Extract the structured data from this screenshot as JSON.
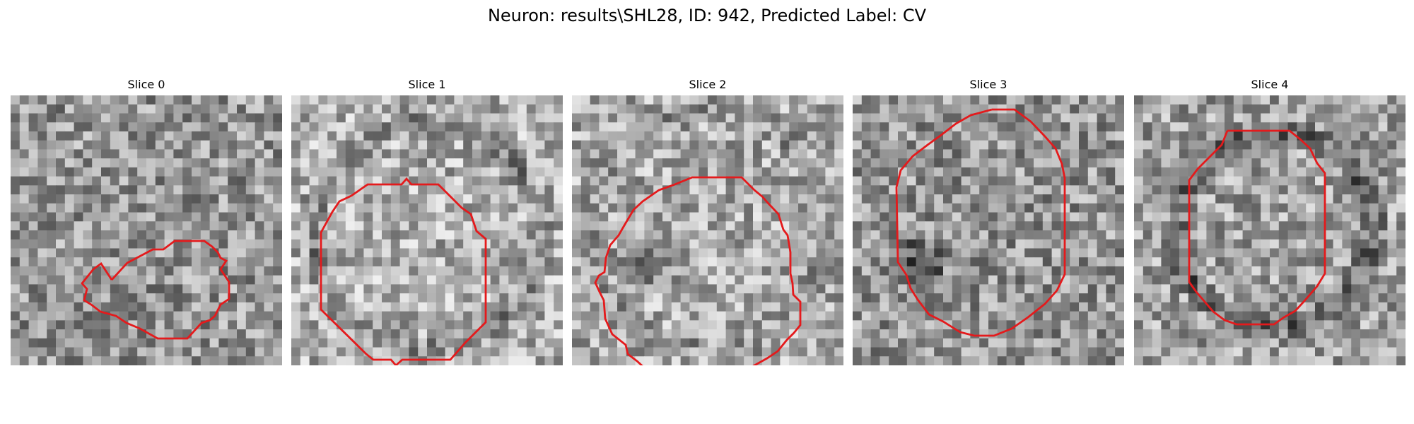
{
  "figure": {
    "title": "Neuron: results\\SHL28, ID: 942, Predicted Label: CV",
    "contour_color": "#e41a1c",
    "colormap": "grayscale",
    "grid": "none",
    "axes": "hidden"
  },
  "panels": [
    {
      "title": "Slice 0",
      "image_name": "em-slice-0",
      "contour": "small irregular outline of the neuron cross-section"
    },
    {
      "title": "Slice 1",
      "image_name": "em-slice-1",
      "contour": "large octagonal outline of the neuron cross-section"
    },
    {
      "title": "Slice 2",
      "image_name": "em-slice-2",
      "contour": "large octagonal outline of the neuron cross-section"
    },
    {
      "title": "Slice 3",
      "image_name": "em-slice-3",
      "contour": "large octagonal outline of the neuron cross-section"
    },
    {
      "title": "Slice 4",
      "image_name": "em-slice-4",
      "contour": "medium octagonal outline of the neuron cross-section"
    }
  ]
}
